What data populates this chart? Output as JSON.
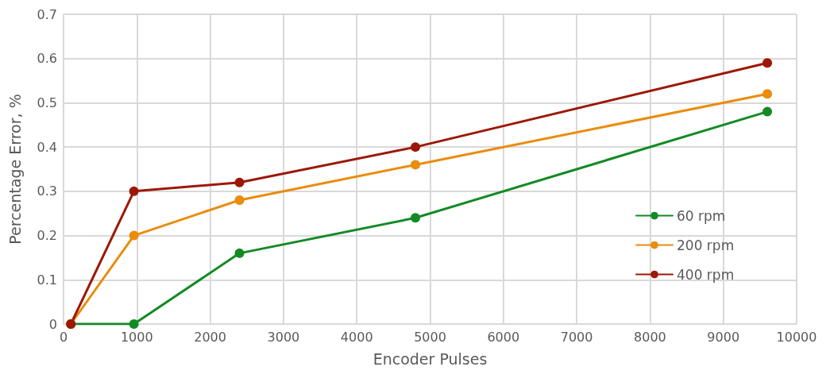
{
  "chart_data": {
    "type": "line",
    "xlabel": "Encoder Pulses",
    "ylabel": "Percentage Error, %",
    "x": [
      100,
      960,
      2400,
      4800,
      9600
    ],
    "series": [
      {
        "name": "60 rpm",
        "color": "#138a24",
        "values": [
          0,
          0,
          0.16,
          0.24,
          0.48
        ]
      },
      {
        "name": "200 rpm",
        "color": "#ea8c0c",
        "values": [
          0,
          0.2,
          0.28,
          0.36,
          0.52
        ]
      },
      {
        "name": "400 rpm",
        "color": "#9c1806",
        "values": [
          0,
          0.3,
          0.32,
          0.4,
          0.59
        ]
      }
    ],
    "xlim": [
      0,
      10000
    ],
    "xticks": [
      0,
      1000,
      2000,
      3000,
      4000,
      5000,
      6000,
      7000,
      8000,
      9000,
      10000
    ],
    "ylim": [
      0,
      0.7
    ],
    "yticks": [
      0,
      0.1,
      0.2,
      0.3,
      0.4,
      0.5,
      0.6,
      0.7
    ],
    "grid": true,
    "legend": "right",
    "marker": "circle",
    "line_style": "solid"
  }
}
